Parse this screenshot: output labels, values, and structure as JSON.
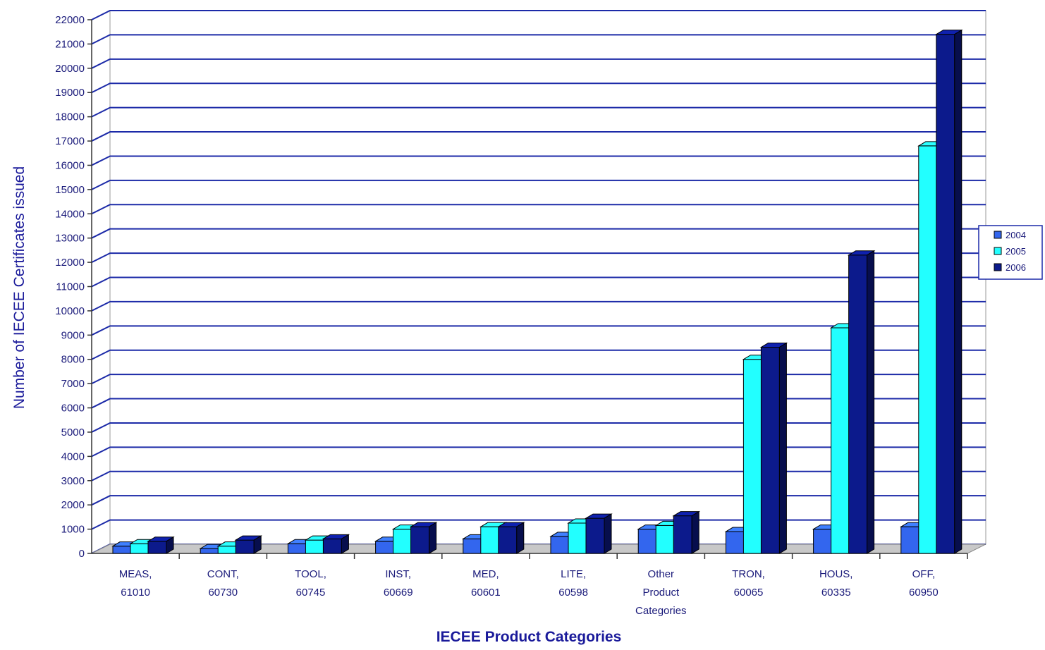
{
  "chart_data": {
    "type": "bar",
    "xlabel": "IECEE Product Categories",
    "ylabel": "Number of IECEE Certificates issued",
    "ylim": [
      0,
      22000
    ],
    "yticks": [
      0,
      1000,
      2000,
      3000,
      4000,
      5000,
      6000,
      7000,
      8000,
      9000,
      10000,
      11000,
      12000,
      13000,
      14000,
      15000,
      16000,
      17000,
      18000,
      19000,
      20000,
      21000,
      22000
    ],
    "grid": true,
    "legend_position": "right",
    "categories": [
      [
        "MEAS,",
        "61010"
      ],
      [
        "CONT,",
        "60730"
      ],
      [
        "TOOL,",
        "60745"
      ],
      [
        "INST,",
        "60669"
      ],
      [
        "MED,",
        "60601"
      ],
      [
        "LITE,",
        "60598"
      ],
      [
        "Other",
        "Product",
        "Categories"
      ],
      [
        "TRON,",
        "60065"
      ],
      [
        "HOUS,",
        "60335"
      ],
      [
        "OFF,",
        "60950"
      ]
    ],
    "series": [
      {
        "name": "2004",
        "color": "#3366ee",
        "values": [
          300,
          200,
          400,
          500,
          600,
          700,
          1000,
          900,
          1000,
          1100
        ]
      },
      {
        "name": "2005",
        "color": "#22ffff",
        "values": [
          400,
          300,
          550,
          1000,
          1100,
          1250,
          1150,
          8000,
          9300,
          16800
        ]
      },
      {
        "name": "2006",
        "color": "#0c1a8c",
        "values": [
          500,
          550,
          600,
          1100,
          1100,
          1450,
          1550,
          8500,
          12300,
          21400
        ]
      }
    ]
  }
}
